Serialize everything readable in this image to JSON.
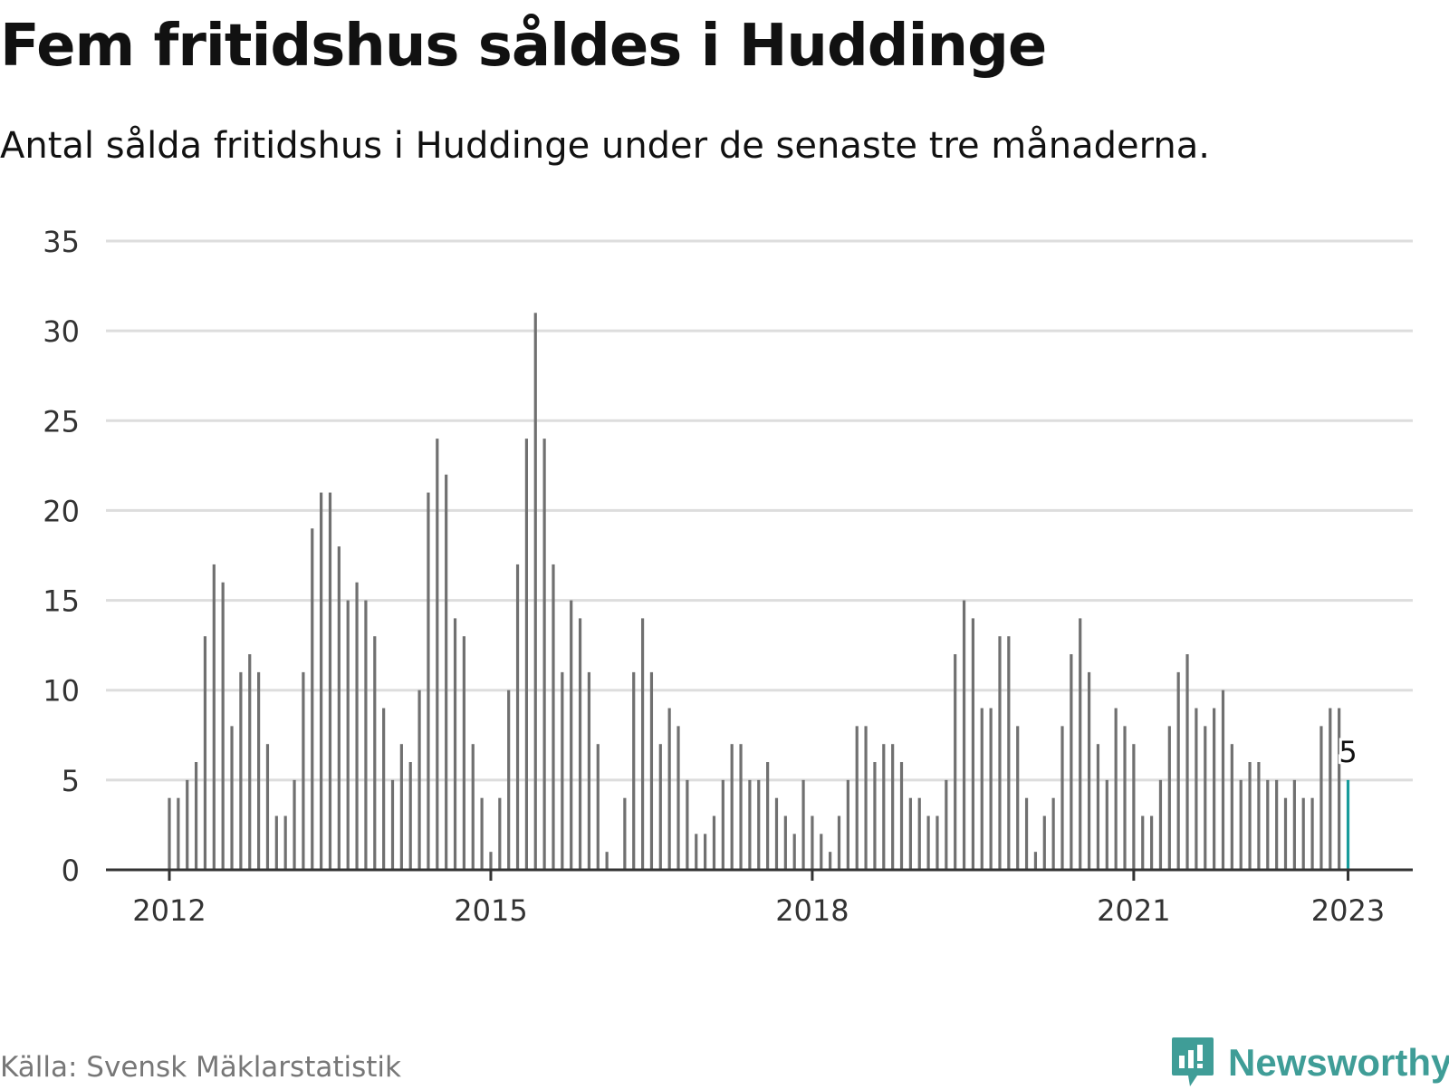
{
  "header": {
    "title": "Fem fritidshus såldes i Huddinge",
    "subtitle": "Antal sålda fritidshus i Huddinge under de senaste tre månaderna."
  },
  "footer": {
    "source": "Källa: Svensk Mäklarstatistik",
    "brand": "Newsworthy",
    "brand_icon": "newsworthy-logo-icon",
    "brand_color": "#3f9d97"
  },
  "colors": {
    "bar": "#707070",
    "highlight": "#179b9b",
    "grid": "#dddddd",
    "axis": "#333333"
  },
  "chart_data": {
    "type": "bar",
    "title": "Fem fritidshus såldes i Huddinge",
    "subtitle": "Antal sålda fritidshus i Huddinge under de senaste tre månaderna.",
    "xlabel": "",
    "ylabel": "",
    "x_start": "2012-01",
    "x_end": "2023-01",
    "x_ticks": [
      "2012",
      "2015",
      "2018",
      "2021",
      "2023"
    ],
    "y_ticks": [
      0,
      5,
      10,
      15,
      20,
      25,
      30,
      35
    ],
    "ylim": [
      0,
      35
    ],
    "grid": true,
    "highlight_label": "5",
    "values": [
      4,
      4,
      5,
      6,
      13,
      17,
      16,
      8,
      11,
      12,
      11,
      7,
      3,
      3,
      5,
      11,
      19,
      21,
      21,
      18,
      15,
      16,
      15,
      13,
      9,
      5,
      7,
      6,
      10,
      21,
      24,
      22,
      14,
      13,
      7,
      4,
      1,
      4,
      10,
      17,
      24,
      31,
      24,
      17,
      11,
      15,
      14,
      11,
      7,
      1,
      0,
      4,
      11,
      14,
      11,
      7,
      9,
      8,
      5,
      2,
      2,
      3,
      5,
      7,
      7,
      5,
      5,
      6,
      4,
      3,
      2,
      5,
      3,
      2,
      1,
      3,
      5,
      8,
      8,
      6,
      7,
      7,
      6,
      4,
      4,
      3,
      3,
      5,
      12,
      15,
      14,
      9,
      9,
      13,
      13,
      8,
      4,
      1,
      3,
      4,
      8,
      12,
      14,
      11,
      7,
      5,
      9,
      8,
      7,
      3,
      3,
      5,
      8,
      11,
      12,
      9,
      8,
      9,
      10,
      7,
      5,
      6,
      6,
      5,
      5,
      4,
      5,
      4,
      4,
      8,
      9,
      9,
      5
    ]
  }
}
